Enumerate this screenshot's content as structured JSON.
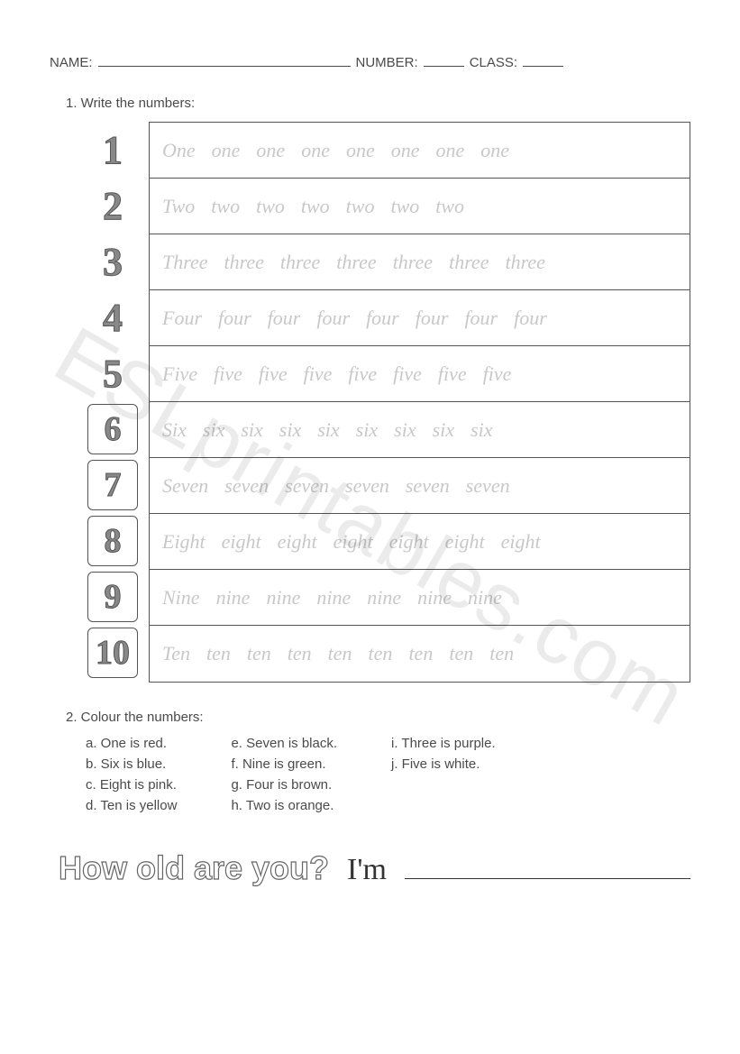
{
  "header": {
    "name_label": "NAME:",
    "number_label": "NUMBER:",
    "class_label": "CLASS:"
  },
  "task1": {
    "instruction": "1. Write the numbers:",
    "rows": [
      {
        "digit": "1",
        "boxed": false,
        "cap": "One",
        "low": "one",
        "count": 7
      },
      {
        "digit": "2",
        "boxed": false,
        "cap": "Two",
        "low": "two",
        "count": 6
      },
      {
        "digit": "3",
        "boxed": false,
        "cap": "Three",
        "low": "three",
        "count": 6
      },
      {
        "digit": "4",
        "boxed": false,
        "cap": "Four",
        "low": "four",
        "count": 7
      },
      {
        "digit": "5",
        "boxed": false,
        "cap": "Five",
        "low": "five",
        "count": 7
      },
      {
        "digit": "6",
        "boxed": true,
        "cap": "Six",
        "low": "six",
        "count": 8
      },
      {
        "digit": "7",
        "boxed": true,
        "cap": "Seven",
        "low": "seven",
        "count": 5
      },
      {
        "digit": "8",
        "boxed": true,
        "cap": "Eight",
        "low": "eight",
        "count": 6
      },
      {
        "digit": "9",
        "boxed": true,
        "cap": "Nine",
        "low": "nine",
        "count": 6
      },
      {
        "digit": "10",
        "boxed": true,
        "cap": "Ten",
        "low": "ten",
        "count": 8
      }
    ]
  },
  "task2": {
    "instruction": "2. Colour the numbers:",
    "columns": [
      [
        "a. One is red.",
        "b. Six is blue.",
        "c. Eight is pink.",
        "d. Ten is yellow"
      ],
      [
        "e. Seven is black.",
        "f. Nine is green.",
        "g. Four is brown.",
        "h. Two is orange."
      ],
      [
        "i. Three is purple.",
        "j. Five is white."
      ]
    ]
  },
  "footer": {
    "question": "How old are you?",
    "answer_lead": "I'm"
  },
  "watermark": "ESLprintables.com"
}
